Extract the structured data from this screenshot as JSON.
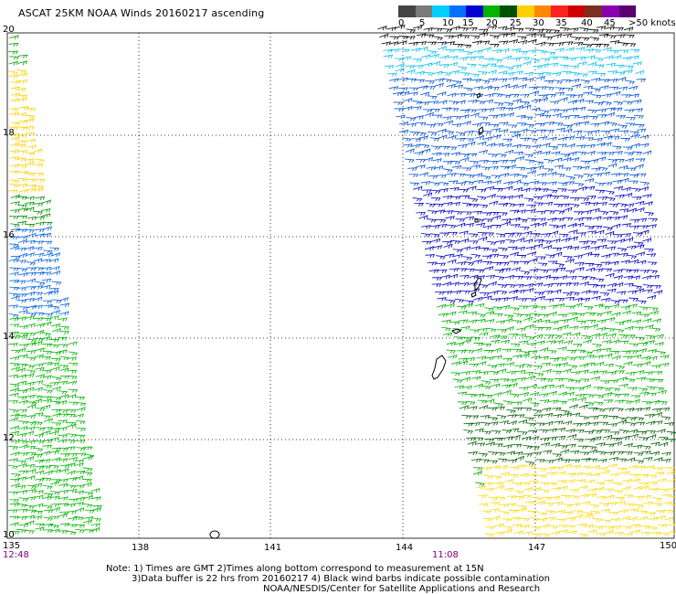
{
  "title": "ASCAT 25KM NOAA Winds 20160217 ascending",
  "legend": {
    "labels": [
      "0",
      "5",
      "10",
      "15",
      "20",
      "25",
      "30",
      "35",
      "40",
      "45",
      ">50 knots"
    ],
    "colors": [
      "#444444",
      "#7a7a7a",
      "#00d0ff",
      "#0070ff",
      "#0000d0",
      "#00b400",
      "#005000",
      "#ffd000",
      "#ff8800",
      "#ff2020",
      "#d00000",
      "#7a3020",
      "#8a00b0",
      "#5a0070"
    ]
  },
  "axes": {
    "lon_labels": [
      "135",
      "138",
      "141",
      "144",
      "147",
      "150"
    ],
    "lat_labels": [
      "20",
      "18",
      "16",
      "14",
      "12",
      "10"
    ]
  },
  "time_labels": {
    "left": "12:48",
    "right": "11:08"
  },
  "notes": [
    "Note: 1) Times are GMT 2)Times along bottom correspond to measurement at 15N",
    "3)Data buffer is 22 hrs from 20160217 4) Black wind barbs indicate possible contamination",
    "NOAA/NESDIS/Center for Satellite Applications and Research"
  ]
}
